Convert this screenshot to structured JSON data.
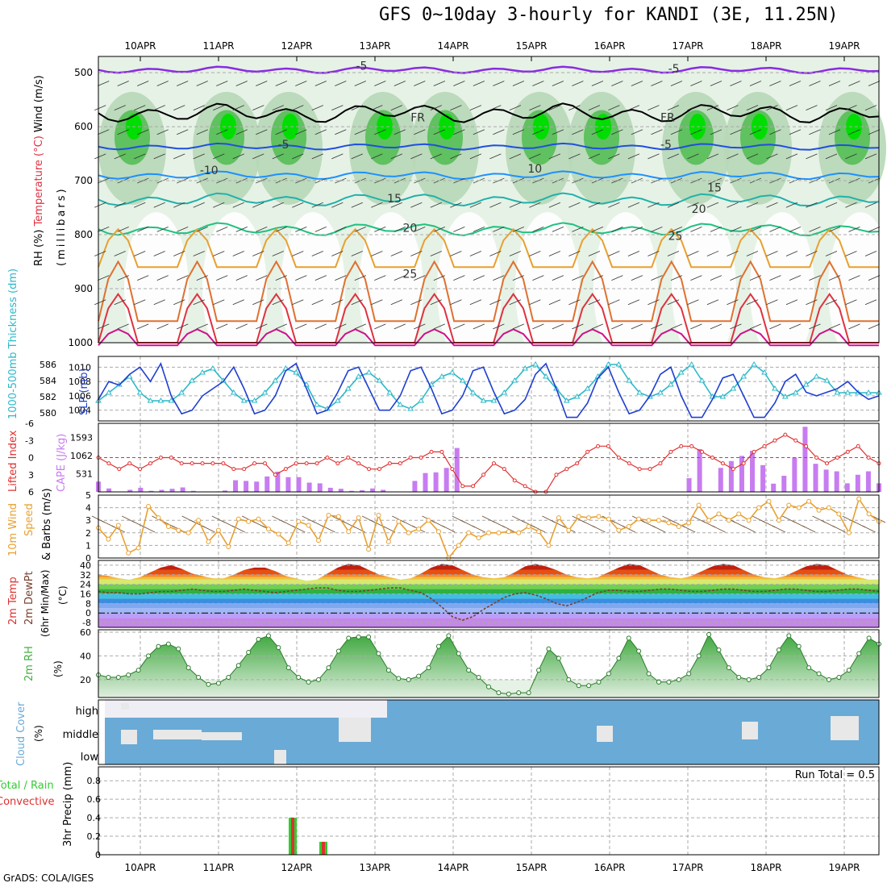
{
  "title": "GFS 0~10day 3-hourly for KANDI (3E, 11.25N)",
  "footer": "GrADS: COLA/IGES",
  "dates": [
    "10APR",
    "11APR",
    "12APR",
    "13APR",
    "14APR",
    "15APR",
    "16APR",
    "17APR",
    "18APR",
    "19APR"
  ],
  "colors": {
    "rh_fill": "#00dd00",
    "temp_neg": "#8a2be2",
    "slp": "#1f3fd0",
    "thickness": "#2cb8c8",
    "lifted": "#e23030",
    "cape": "#c77cf0",
    "wind": "#e8a030",
    "dewpt": "#7a4030",
    "rh2m": "#44b040",
    "cloud": "#6aaad6",
    "precip_total": "#33cc33",
    "precip_conv": "#e03030"
  },
  "chart_data": [
    {
      "type": "contour",
      "name": "upper-air",
      "ylabel_parts": [
        "RH (%)",
        "Temperature (°C)",
        "Wind (m/s)"
      ],
      "ylabel2": "(millibars)",
      "y_ticks": [
        500,
        600,
        700,
        800,
        900,
        1000
      ],
      "contour_labels": [
        {
          "text": "-5",
          "x": 0.33,
          "p": 495
        },
        {
          "text": "-5",
          "x": 0.73,
          "p": 500
        },
        {
          "text": "FR",
          "x": 0.4,
          "p": 590
        },
        {
          "text": "FR",
          "x": 0.72,
          "p": 590
        },
        {
          "text": "-5",
          "x": 0.23,
          "p": 640
        },
        {
          "text": "-5",
          "x": 0.72,
          "p": 640
        },
        {
          "text": "-10",
          "x": 0.13,
          "p": 688
        },
        {
          "text": "10",
          "x": 0.55,
          "p": 685
        },
        {
          "text": "15",
          "x": 0.37,
          "p": 740
        },
        {
          "text": "15",
          "x": 0.78,
          "p": 720
        },
        {
          "text": "20",
          "x": 0.39,
          "p": 795
        },
        {
          "text": "20",
          "x": 0.76,
          "p": 760
        },
        {
          "text": "25",
          "x": 0.73,
          "p": 810
        },
        {
          "text": "25",
          "x": 0.39,
          "p": 880
        }
      ]
    },
    {
      "type": "line",
      "name": "slp-thickness",
      "ylabel_left": "1000-500mb Thickness (dm)",
      "ylabel_right": "SLP (mb)",
      "left_ticks": [
        580,
        582,
        584,
        586
      ],
      "right_ticks": [
        1004,
        1006,
        1008,
        1010
      ],
      "slp": [
        1005.5,
        1008,
        1007.5,
        1009,
        1010,
        1008,
        1010.5,
        1006,
        1003.5,
        1004,
        1006,
        1007,
        1008,
        1010,
        1007,
        1003.5,
        1004,
        1006,
        1009.5,
        1010.5,
        1007,
        1003.5,
        1004,
        1006.5,
        1009.5,
        1010,
        1007,
        1004,
        1004,
        1006,
        1009.5,
        1010,
        1007,
        1003.5,
        1004,
        1006,
        1009.5,
        1010,
        1006.5,
        1003.5,
        1004,
        1005.5,
        1009,
        1010.5,
        1007,
        1003,
        1003,
        1005,
        1008.5,
        1010,
        1006.5,
        1003.5,
        1004,
        1006,
        1009,
        1010,
        1006,
        1003,
        1003,
        1005.5,
        1008.5,
        1009,
        1006,
        1003,
        1003,
        1005,
        1008,
        1009,
        1006.5,
        1006,
        1006.5,
        1007,
        1008,
        1006.5,
        1005.5,
        1006
      ],
      "thickness": [
        581.5,
        582.5,
        583.5,
        584.5,
        582.5,
        581.5,
        581.5,
        581.5,
        582.5,
        584,
        585,
        585.5,
        584,
        582.5,
        581.5,
        581.5,
        582.5,
        584,
        585.5,
        585,
        583.5,
        581,
        580.5,
        581.5,
        583,
        584.5,
        585,
        584,
        582.5,
        581,
        580.5,
        581.5,
        583.5,
        584.5,
        585,
        584,
        582.5,
        581.5,
        581.5,
        582.5,
        584,
        585.5,
        586,
        584.5,
        583,
        581.5,
        582,
        583,
        584.5,
        586,
        586,
        584,
        582.5,
        582,
        582.5,
        583.5,
        585,
        586,
        584,
        582,
        582,
        583,
        584.5,
        586,
        585,
        583,
        582,
        582.5,
        583.5,
        584.5,
        584,
        582.5,
        582.5,
        582.5,
        582.5,
        582.5
      ]
    },
    {
      "type": "bar+line",
      "name": "lifted-cape",
      "ylabel_left": "Lifted Index",
      "ylabel_right": "CAPE (J/kg)",
      "lifted_ticks": [
        "-6",
        "-3",
        "0",
        "3",
        "6"
      ],
      "cape_ticks": [
        531,
        1062,
        1593
      ],
      "lifted": [
        0,
        1,
        2,
        1,
        2,
        1,
        0,
        0,
        1,
        1,
        1,
        1,
        1,
        2,
        2,
        1,
        1,
        3,
        2,
        1,
        1,
        1,
        0,
        1,
        0,
        1,
        2,
        2,
        1,
        1,
        0,
        0,
        -1,
        -1,
        2,
        5,
        5,
        3,
        1,
        2,
        4,
        5,
        6,
        6,
        3,
        2,
        1,
        -1,
        -2,
        -2,
        0,
        1,
        2,
        2,
        1,
        -1,
        -2,
        -2,
        -1,
        0,
        1,
        2,
        1,
        -1,
        -2,
        -3,
        -4,
        -3,
        -2,
        0,
        1,
        0,
        -1,
        -2,
        0,
        1
      ],
      "cape": [
        300,
        100,
        0,
        60,
        120,
        30,
        60,
        90,
        130,
        30,
        0,
        0,
        40,
        340,
        320,
        300,
        450,
        590,
        430,
        430,
        270,
        250,
        120,
        90,
        30,
        50,
        100,
        60,
        0,
        0,
        320,
        550,
        570,
        700,
        1280,
        0,
        0,
        0,
        0,
        0,
        0,
        0,
        0,
        0,
        0,
        0,
        0,
        0,
        0,
        0,
        0,
        0,
        0,
        0,
        0,
        0,
        400,
        1250,
        0,
        700,
        900,
        1050,
        1200,
        780,
        240,
        470,
        1000,
        1900,
        820,
        650,
        600,
        250,
        500,
        600,
        250
      ]
    },
    {
      "type": "line",
      "name": "wind10m",
      "ylabel": "10m Wind Speed & Barbs (m/s)",
      "y_ticks": [
        0,
        1,
        2,
        3,
        4,
        5
      ],
      "values": [
        2.4,
        1.5,
        2.6,
        0.4,
        0.8,
        4.1,
        3.2,
        2.5,
        2.2,
        2.0,
        3.0,
        1.3,
        2.2,
        0.9,
        3.1,
        2.9,
        3.1,
        2.3,
        1.9,
        1.2,
        2.9,
        2.6,
        1.4,
        3.4,
        3.3,
        2.1,
        3.2,
        0.7,
        3.4,
        1.3,
        2.9,
        2.0,
        2.3,
        3.0,
        2.1,
        0.0,
        1.0,
        2.0,
        1.6,
        2.0,
        2.0,
        2.1,
        2.0,
        2.5,
        2.1,
        1.0,
        3.2,
        2.2,
        3.3,
        3.2,
        3.3,
        3.1,
        2.2,
        2.5,
        3.1,
        3.0,
        3.0,
        2.8,
        2.5,
        2.8,
        4.2,
        3.0,
        3.5,
        3.0,
        3.5,
        3.0,
        4.0,
        4.5,
        3.0,
        4.2,
        4.0,
        4.5,
        3.8,
        4.0,
        3.5,
        2.0,
        4.7,
        3.5,
        2.9
      ]
    },
    {
      "type": "area",
      "name": "temp-dewpt",
      "ylabel": "2m Temp 2m DewPt (6hr Min/Max) (°C)",
      "y_ticks": [
        -8,
        0,
        8,
        16,
        24,
        32,
        40
      ],
      "temp": [
        32,
        31,
        29,
        28,
        30,
        34,
        38,
        40,
        37,
        33,
        31,
        29,
        29,
        32,
        36,
        38,
        38,
        35,
        31,
        29,
        27,
        28,
        33,
        38,
        41,
        40,
        36,
        32,
        30,
        28,
        29,
        33,
        38,
        41,
        40,
        36,
        32,
        30,
        29,
        30,
        34,
        39,
        41,
        39,
        36,
        32,
        30,
        29,
        30,
        34,
        38,
        41,
        40,
        36,
        32,
        30,
        29,
        31,
        35,
        39,
        41,
        40,
        36,
        32,
        30,
        29,
        31,
        35,
        39,
        41,
        40,
        36,
        32,
        30,
        28,
        28
      ],
      "dewpt": [
        18,
        17,
        17,
        16,
        16,
        17,
        18,
        18,
        19,
        20,
        19,
        18,
        18,
        19,
        20,
        19,
        18,
        17,
        18,
        19,
        20,
        21,
        21,
        19,
        18,
        18,
        19,
        20,
        21,
        21,
        19,
        17,
        12,
        5,
        -3,
        -6,
        -3,
        3,
        8,
        13,
        16,
        17,
        15,
        12,
        8,
        6,
        9,
        13,
        17,
        19,
        19,
        18,
        18,
        19,
        20,
        20,
        19,
        18,
        18,
        19,
        20,
        20,
        19,
        18,
        18,
        19,
        20,
        20,
        19,
        18,
        18,
        19,
        20,
        20,
        19,
        18
      ]
    },
    {
      "type": "area",
      "name": "rh2m",
      "ylabel": "2m RH (%)",
      "y_ticks": [
        20,
        40,
        60
      ],
      "values": [
        24,
        22,
        22,
        24,
        28,
        40,
        48,
        50,
        46,
        30,
        22,
        16,
        17,
        22,
        32,
        43,
        54,
        57,
        47,
        30,
        22,
        18,
        20,
        30,
        44,
        55,
        56,
        56,
        42,
        28,
        21,
        20,
        23,
        30,
        48,
        57,
        42,
        28,
        22,
        14,
        9,
        8,
        9,
        9,
        28,
        46,
        38,
        20,
        15,
        15,
        18,
        25,
        38,
        55,
        44,
        25,
        18,
        18,
        20,
        25,
        40,
        58,
        45,
        30,
        22,
        20,
        22,
        30,
        45,
        57,
        48,
        30,
        25,
        20,
        22,
        28,
        42,
        55,
        50
      ]
    },
    {
      "type": "bar",
      "name": "cloud-cover",
      "ylabel": "Cloud Cover (%)",
      "levels": [
        "high",
        "middle",
        "low"
      ]
    },
    {
      "type": "bar",
      "name": "precip",
      "ylabel_a": "Total / Rain",
      "ylabel_b": "Convective",
      "ylabel_c": "3hr Precip (mm)",
      "y_ticks": [
        "0",
        "0.2",
        "0.4",
        "0.6",
        "0.8"
      ],
      "run_total_label": "Run Total =",
      "run_total": "0.5",
      "bars": [
        {
          "date": "12APR",
          "value": 0.4
        },
        {
          "date": "12APR+9h",
          "value": 0.14
        }
      ]
    }
  ]
}
